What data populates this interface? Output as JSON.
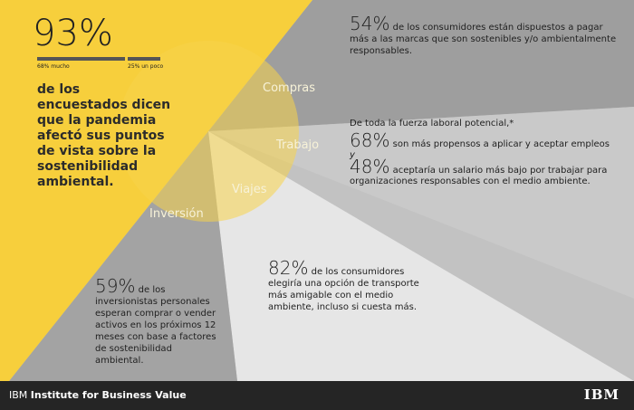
{
  "colors": {
    "yellow": "#f7cf3c",
    "dark_gray": "#9b9b9b",
    "mid_gray": "#c6c6c6",
    "light_gray": "#e4e4e4",
    "footer": "#252525"
  },
  "headline": {
    "value": "93%",
    "bar_labels": [
      "68% mucho",
      "25% un poco"
    ],
    "bar_values": [
      68,
      25
    ],
    "text": "de los encuestados dicen que la pandemia afectó sus puntos de vista sobre la sostenibilidad ambiental."
  },
  "wedges": {
    "compras": "Compras",
    "trabajo": "Trabajo",
    "viajes": "Viajes",
    "inversion": "Inversión"
  },
  "compras": {
    "value": "54%",
    "text": "de los consumidores están dispuestos a pagar más a las marcas que son sostenibles y/o ambientalmente responsables."
  },
  "trabajo": {
    "intro": "De toda la fuerza laboral potencial,*",
    "value1": "68%",
    "text1": "son más propensos a aplicar y aceptar empleos",
    "conj": "y",
    "value2": "48%",
    "text2": "aceptaría un salario más bajo por trabajar para organizaciones responsables con el medio ambiente."
  },
  "viajes": {
    "value": "82%",
    "text": "de los consumidores elegiría una opción de transporte más amigable con el medio ambiente, incluso si cuesta más."
  },
  "inversion": {
    "value": "59%",
    "text": "de los inversionistas personales esperan comprar o vender activos en los próximos 12 meses con base a factores de sostenibilidad ambiental."
  },
  "footer": {
    "brand_light": "IBM",
    "brand_bold": "Institute for Business Value",
    "logo": "IBM"
  }
}
